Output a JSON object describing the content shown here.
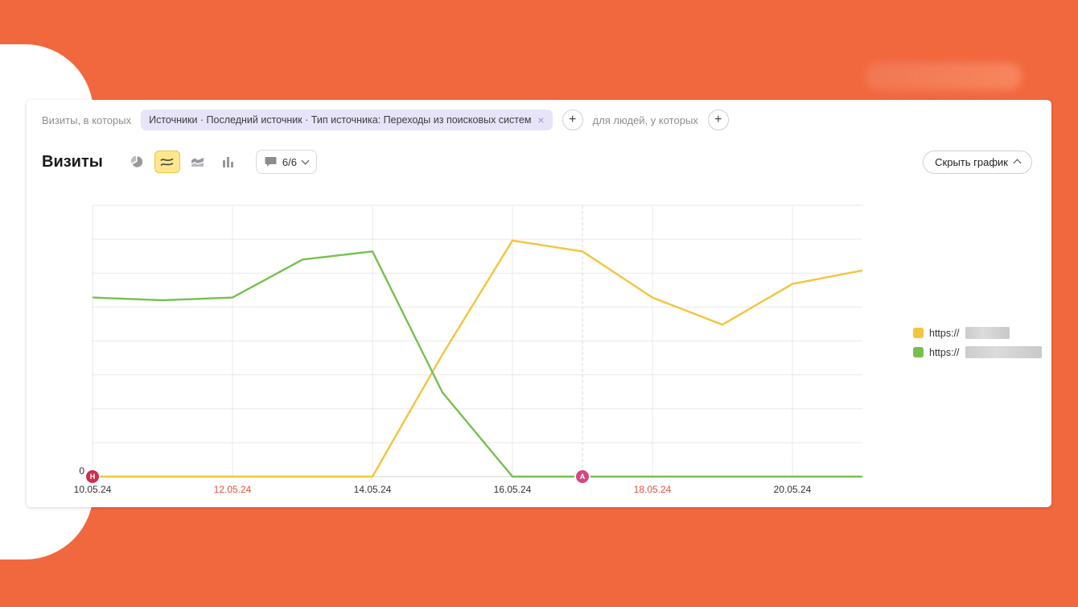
{
  "page": {
    "filter_row": {
      "prefix_label": "Визиты, в которых",
      "chip": {
        "text": "Источники · Последний источник · Тип источника: Переходы из поисковых систем",
        "remove_icon": "×"
      },
      "add_segment_button": "+",
      "people_label": "для людей, у которых",
      "add_people_button": "+"
    },
    "toolbar": {
      "title": "Визиты",
      "comments": {
        "label": "6/6"
      },
      "hide_chart_button": "Скрыть график"
    },
    "legend": [
      {
        "label": "https://",
        "color": "#f2c53d",
        "masked": true,
        "mask_width": 55
      },
      {
        "label": "https://",
        "color": "#76c04e",
        "masked": true,
        "mask_width": 95
      }
    ]
  },
  "chart_data": {
    "type": "line",
    "x": [
      "10.05.24",
      "11.05.24",
      "12.05.24",
      "13.05.24",
      "14.05.24",
      "15.05.24",
      "16.05.24",
      "17.05.24",
      "18.05.24",
      "19.05.24",
      "20.05.24",
      "21.05.24"
    ],
    "x_tick_labels": [
      {
        "text": "10.05.24",
        "day": 0,
        "weekend": false
      },
      {
        "text": "12.05.24",
        "day": 2,
        "weekend": true
      },
      {
        "text": "14.05.24",
        "day": 4,
        "weekend": false
      },
      {
        "text": "16.05.24",
        "day": 6,
        "weekend": false
      },
      {
        "text": "18.05.24",
        "day": 8,
        "weekend": true
      },
      {
        "text": "20.05.24",
        "day": 10,
        "weekend": false
      }
    ],
    "weekend_label_color": "#e0513c",
    "ylabel_zero": "0",
    "ylim": [
      0,
      100
    ],
    "grid": true,
    "y_gridline_count": 8,
    "series": [
      {
        "name": "https:// (yellow)",
        "color": "#f2c53d",
        "values": [
          0,
          0,
          0,
          0,
          0,
          45,
          87,
          83,
          66,
          56,
          71,
          76
        ]
      },
      {
        "name": "https:// (green)",
        "color": "#76c04e",
        "values": [
          66,
          65,
          66,
          80,
          83,
          31,
          0,
          0,
          0,
          0,
          0,
          0
        ]
      }
    ],
    "markers": [
      {
        "label": "Н",
        "day": 0,
        "color": "#cf2e50",
        "dashed_line": false
      },
      {
        "label": "А",
        "day": 7,
        "color": "#d2477e",
        "dashed_line": true
      }
    ],
    "legend_position": "right"
  }
}
